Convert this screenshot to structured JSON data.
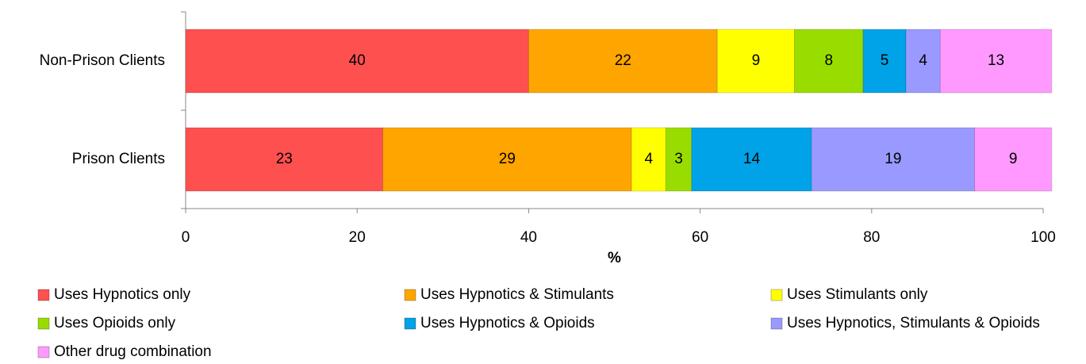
{
  "chart_data": {
    "type": "stacked_bar_horizontal",
    "x_label": "%",
    "categories": [
      "Non-Prison Clients",
      "Prison Clients"
    ],
    "series": [
      {
        "name": "Uses Hypnotics only",
        "color": "#ff5050",
        "values": [
          40,
          23
        ]
      },
      {
        "name": "Uses Hypnotics & Stimulants",
        "color": "#ffa500",
        "values": [
          22,
          29
        ]
      },
      {
        "name": "Uses Stimulants only",
        "color": "#ffff00",
        "values": [
          9,
          4
        ]
      },
      {
        "name": "Uses Opioids only",
        "color": "#99dd00",
        "values": [
          8,
          3
        ]
      },
      {
        "name": "Uses Hypnotics & Opioids",
        "color": "#00a2e8",
        "values": [
          5,
          14
        ]
      },
      {
        "name": "Uses Hypnotics, Stimulants & Opioids",
        "color": "#9999ff",
        "values": [
          4,
          19
        ]
      },
      {
        "name": "Other drug combination",
        "color": "#ff99ff",
        "values": [
          13,
          9
        ]
      }
    ],
    "xlim": [
      0,
      100
    ],
    "xticks": [
      0,
      20,
      40,
      60,
      80,
      100
    ]
  }
}
